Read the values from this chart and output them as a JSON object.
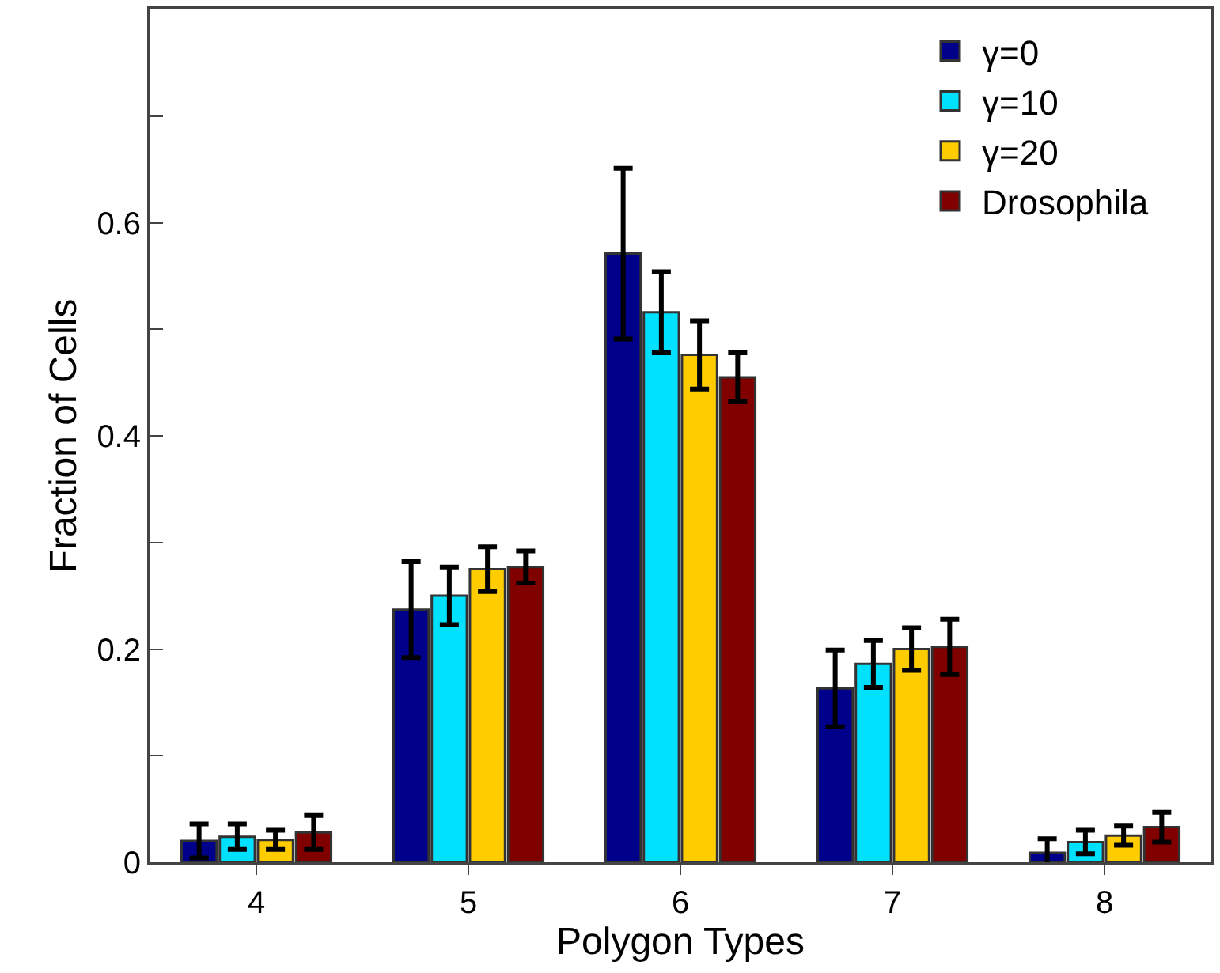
{
  "chart_data": {
    "type": "bar",
    "xlabel": "Polygon Types",
    "ylabel": "Fraction of Cells",
    "categories": [
      "4",
      "5",
      "6",
      "7",
      "8"
    ],
    "series": [
      {
        "name": "γ=0",
        "color": "#00008b",
        "values": [
          0.02,
          0.237,
          0.571,
          0.163,
          0.009
        ],
        "errors": [
          0.016,
          0.045,
          0.08,
          0.036,
          0.013
        ]
      },
      {
        "name": "γ=10",
        "color": "#00e0ff",
        "values": [
          0.024,
          0.25,
          0.516,
          0.186,
          0.019
        ],
        "errors": [
          0.012,
          0.027,
          0.038,
          0.022,
          0.011
        ]
      },
      {
        "name": "γ=20",
        "color": "#ffcc00",
        "values": [
          0.021,
          0.275,
          0.476,
          0.2,
          0.025
        ],
        "errors": [
          0.009,
          0.021,
          0.032,
          0.02,
          0.009
        ]
      },
      {
        "name": "Drosophila",
        "color": "#800000",
        "values": [
          0.028,
          0.277,
          0.455,
          0.202,
          0.033
        ],
        "errors": [
          0.016,
          0.015,
          0.023,
          0.026,
          0.014
        ]
      }
    ],
    "ylim": [
      0,
      0.8
    ],
    "yticks": [
      0,
      {
        "value": 0.1,
        "label": null
      },
      {
        "value": 0.2,
        "label": "0.2"
      },
      {
        "value": 0.3,
        "label": null
      },
      {
        "value": 0.4,
        "label": "0.4"
      },
      {
        "value": 0.5,
        "label": null
      },
      {
        "value": 0.6,
        "label": "0.6"
      },
      {
        "value": 0.7,
        "label": null
      }
    ],
    "legend": "top right"
  }
}
